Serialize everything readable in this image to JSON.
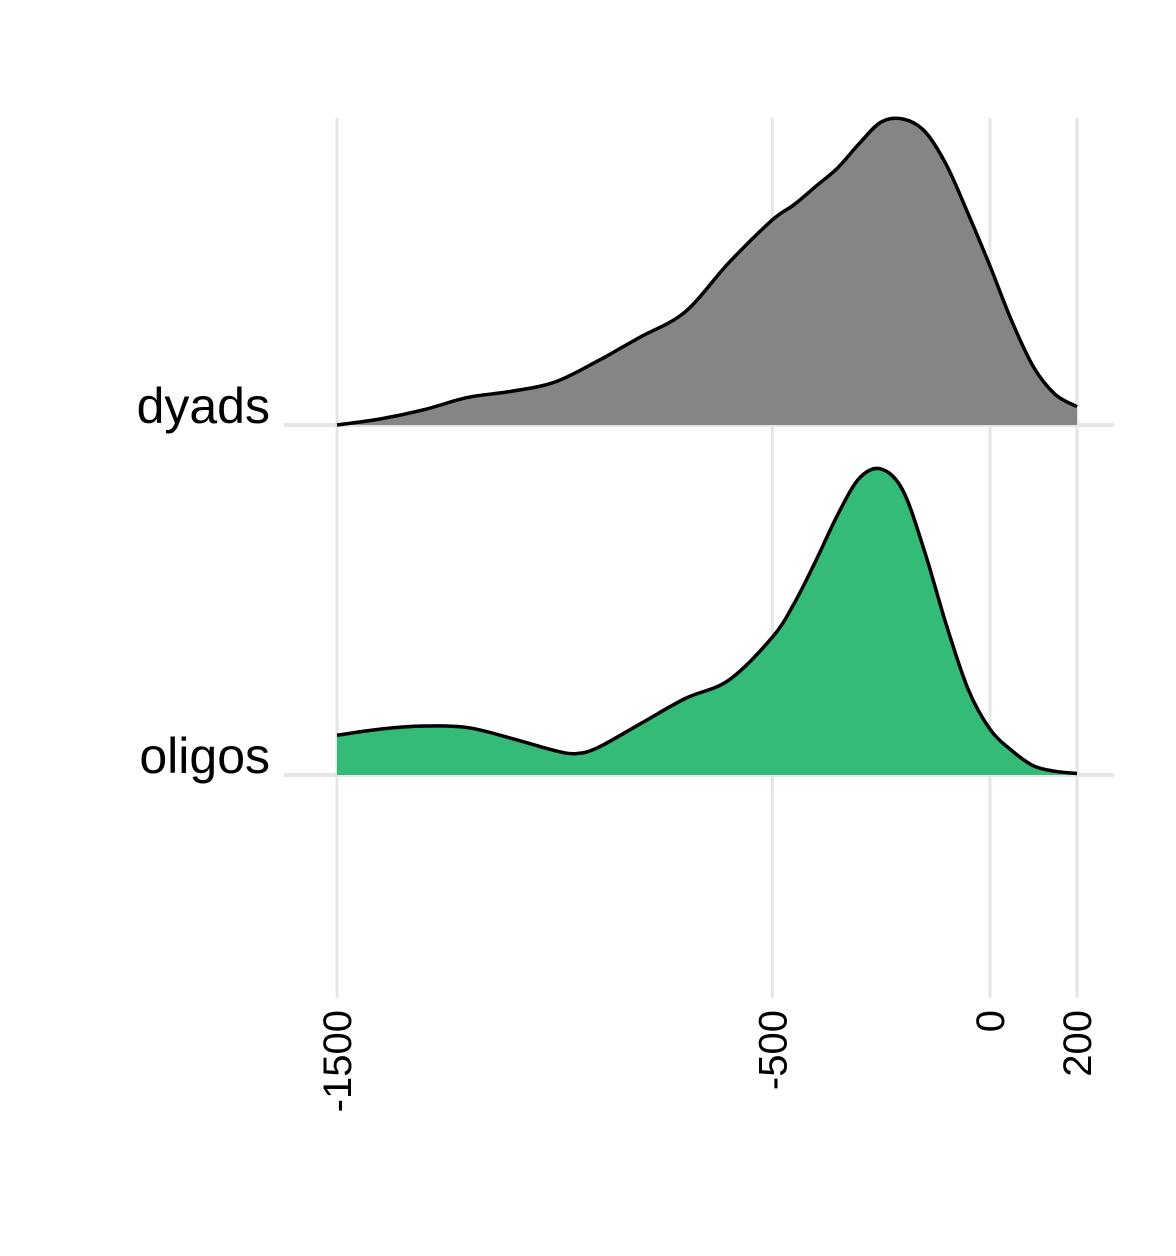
{
  "chart_data": {
    "type": "area",
    "subtype": "ridgeline",
    "title": "",
    "xlabel": "",
    "ylabel": "",
    "xlim": [
      -1500,
      200
    ],
    "x_ticks": [
      -1500,
      -500,
      0,
      200
    ],
    "x_tick_labels": [
      "-1500",
      "-500",
      "0",
      "200"
    ],
    "grid": true,
    "categories": [
      "dyads",
      "oligos"
    ],
    "series": [
      {
        "name": "dyads",
        "color": "#858585",
        "x": [
          -1500,
          -1400,
          -1300,
          -1200,
          -1100,
          -1000,
          -900,
          -850,
          -800,
          -700,
          -600,
          -500,
          -450,
          -400,
          -350,
          -300,
          -250,
          -200,
          -150,
          -100,
          -50,
          0,
          50,
          100,
          150,
          200
        ],
        "density": [
          0.0,
          0.02,
          0.05,
          0.09,
          0.11,
          0.14,
          0.21,
          0.25,
          0.29,
          0.37,
          0.53,
          0.67,
          0.72,
          0.78,
          0.84,
          0.92,
          0.99,
          1.0,
          0.96,
          0.85,
          0.69,
          0.52,
          0.34,
          0.19,
          0.1,
          0.06
        ]
      },
      {
        "name": "oligos",
        "color": "#33bb77",
        "x": [
          -1500,
          -1400,
          -1300,
          -1200,
          -1100,
          -1000,
          -950,
          -900,
          -800,
          -700,
          -600,
          -500,
          -450,
          -400,
          -350,
          -300,
          -250,
          -200,
          -150,
          -100,
          -50,
          0,
          50,
          100,
          150,
          200
        ],
        "density": [
          0.13,
          0.15,
          0.16,
          0.155,
          0.12,
          0.08,
          0.07,
          0.09,
          0.17,
          0.25,
          0.31,
          0.45,
          0.56,
          0.7,
          0.85,
          0.97,
          1.0,
          0.93,
          0.73,
          0.49,
          0.28,
          0.15,
          0.08,
          0.03,
          0.012,
          0.005
        ]
      }
    ]
  }
}
